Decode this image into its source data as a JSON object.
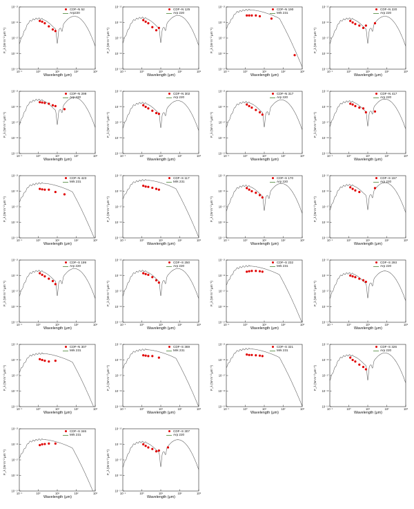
{
  "figure": {
    "xlabel": "Wavelength (μm)",
    "ylabel": "F_λ (W m⁻² μm⁻¹)",
    "x_ticks": [
      "10⁻¹",
      "10⁰",
      "10¹",
      "10²",
      "10³"
    ],
    "colors": {
      "obs": "#e00000",
      "template": "#555555",
      "legend_line": "#6a9a5a"
    }
  },
  "chart_data": [
    {
      "type": "scatter",
      "object": "CDF–N 52",
      "template": "Arp220",
      "xlim": [
        0.1,
        1000
      ],
      "ylim_exp": [
        -19,
        -15
      ],
      "points": [
        [
          1.2,
          -15.9
        ],
        [
          1.6,
          -15.95
        ],
        [
          2.2,
          -16.05
        ],
        [
          3.6,
          -16.25
        ],
        [
          5.8,
          -16.45
        ],
        [
          8,
          -16.55
        ]
      ]
    },
    {
      "type": "scatter",
      "object": "CDF–N 125",
      "template": "Arp 220",
      "xlim": [
        0.1,
        1000
      ],
      "ylim_exp": [
        -19,
        -15
      ],
      "points": [
        [
          1.2,
          -15.85
        ],
        [
          1.6,
          -15.95
        ],
        [
          2.2,
          -16.05
        ],
        [
          3.6,
          -16.3
        ],
        [
          5.8,
          -16.5
        ],
        [
          8,
          -16.35
        ]
      ]
    },
    {
      "type": "scatter",
      "object": "CDF–N 190",
      "template": "Mrk 231",
      "xlim": [
        0.1,
        1000
      ],
      "ylim_exp": [
        -19,
        -15
      ],
      "points": [
        [
          1.2,
          -15.55
        ],
        [
          1.6,
          -15.55
        ],
        [
          2.2,
          -15.55
        ],
        [
          3.6,
          -15.55
        ],
        [
          5.8,
          -15.6
        ],
        [
          24,
          -15.75
        ],
        [
          400,
          -18.1
        ]
      ]
    },
    {
      "type": "scatter",
      "object": "CDF–N 220",
      "template": "Arp 220",
      "xlim": [
        0.1,
        1000
      ],
      "ylim_exp": [
        -19,
        -15
      ],
      "points": [
        [
          1.2,
          -15.9
        ],
        [
          1.6,
          -16.0
        ],
        [
          2.2,
          -16.1
        ],
        [
          3.6,
          -16.2
        ],
        [
          5.8,
          -16.35
        ],
        [
          8,
          -16.2
        ],
        [
          24,
          -16.05
        ]
      ]
    },
    {
      "type": "scatter",
      "object": "CDF–N 299",
      "template": "Arp 220",
      "xlim": [
        0.1,
        1000
      ],
      "ylim_exp": [
        -19,
        -15
      ],
      "points": [
        [
          1.2,
          -15.7
        ],
        [
          1.6,
          -15.72
        ],
        [
          2.2,
          -15.75
        ],
        [
          3.6,
          -15.8
        ],
        [
          5.8,
          -15.9
        ],
        [
          8,
          -15.95
        ],
        [
          24,
          -16.15
        ]
      ]
    },
    {
      "type": "scatter",
      "object": "CDF–N 302",
      "template": "Arp 220",
      "xlim": [
        0.1,
        1000
      ],
      "ylim_exp": [
        -19,
        -15
      ],
      "points": [
        [
          1.2,
          -15.9
        ],
        [
          1.6,
          -16.0
        ],
        [
          2.2,
          -16.1
        ],
        [
          3.6,
          -16.25
        ],
        [
          5.8,
          -16.4
        ],
        [
          8,
          -16.45
        ]
      ]
    },
    {
      "type": "scatter",
      "object": "CDF–N 317",
      "template": "Arp 220",
      "xlim": [
        0.1,
        1000
      ],
      "ylim_exp": [
        -19,
        -15
      ],
      "points": [
        [
          1.2,
          -15.85
        ],
        [
          1.6,
          -15.95
        ],
        [
          2.2,
          -16.05
        ],
        [
          3.6,
          -16.2
        ],
        [
          5.8,
          -16.35
        ],
        [
          8,
          -16.5
        ]
      ]
    },
    {
      "type": "scatter",
      "object": "CDF–N 417",
      "template": "Arp 220",
      "xlim": [
        0.1,
        1000
      ],
      "ylim_exp": [
        -19,
        -15
      ],
      "points": [
        [
          1.2,
          -15.8
        ],
        [
          1.6,
          -15.85
        ],
        [
          2.2,
          -15.95
        ],
        [
          3.6,
          -16.05
        ],
        [
          5.8,
          -16.1
        ],
        [
          8,
          -16.35
        ],
        [
          24,
          -16.3
        ]
      ]
    },
    {
      "type": "scatter",
      "object": "CDF–N 423",
      "template": "Mrk 231",
      "xlim": [
        0.1,
        1000
      ],
      "ylim_exp": [
        -19,
        -15
      ],
      "points": [
        [
          1.2,
          -15.85
        ],
        [
          1.6,
          -15.88
        ],
        [
          2.2,
          -15.9
        ],
        [
          3.6,
          -15.9
        ],
        [
          8,
          -16.05
        ],
        [
          24,
          -16.2
        ]
      ]
    },
    {
      "type": "scatter",
      "object": "CDF–S 117",
      "template": "Mrk 231",
      "xlim": [
        0.1,
        1000
      ],
      "ylim_exp": [
        -19,
        -15
      ],
      "points": [
        [
          1.2,
          -15.65
        ],
        [
          1.6,
          -15.7
        ],
        [
          2.2,
          -15.72
        ],
        [
          3.6,
          -15.78
        ],
        [
          5.8,
          -15.85
        ],
        [
          8,
          -15.9
        ]
      ]
    },
    {
      "type": "scatter",
      "object": "CDF–S 170",
      "template": "Arp 220",
      "xlim": [
        0.1,
        1000
      ],
      "ylim_exp": [
        -19,
        -15
      ],
      "points": [
        [
          1.2,
          -15.8
        ],
        [
          1.6,
          -15.9
        ],
        [
          2.2,
          -16.0
        ],
        [
          3.6,
          -16.1
        ],
        [
          5.8,
          -16.25
        ],
        [
          8,
          -16.4
        ]
      ]
    },
    {
      "type": "scatter",
      "object": "CDF–S 157",
      "template": "Arp 220",
      "xlim": [
        0.1,
        1000
      ],
      "ylim_exp": [
        -19,
        -15
      ],
      "points": [
        [
          1.2,
          -15.75
        ],
        [
          1.6,
          -15.85
        ],
        [
          2.2,
          -15.95
        ],
        [
          3.6,
          -16.05
        ],
        [
          24,
          -15.8
        ]
      ]
    },
    {
      "type": "scatter",
      "object": "CDF–S 199",
      "template": "Arp 220",
      "xlim": [
        0.1,
        1000
      ],
      "ylim_exp": [
        -19,
        -15
      ],
      "points": [
        [
          1.2,
          -15.85
        ],
        [
          1.6,
          -15.95
        ],
        [
          2.2,
          -16.05
        ],
        [
          3.6,
          -16.2
        ],
        [
          5.8,
          -16.35
        ],
        [
          8,
          -16.55
        ]
      ]
    },
    {
      "type": "scatter",
      "object": "CDF–S 250",
      "template": "Arp 220",
      "xlim": [
        0.1,
        1000
      ],
      "ylim_exp": [
        -19,
        -15
      ],
      "points": [
        [
          1.2,
          -15.85
        ],
        [
          1.6,
          -15.9
        ],
        [
          2.2,
          -15.95
        ],
        [
          3.6,
          -16.1
        ],
        [
          5.8,
          -16.3
        ],
        [
          8,
          -16.45
        ]
      ]
    },
    {
      "type": "scatter",
      "object": "CDF–S 232",
      "template": "Mrk 231",
      "xlim": [
        0.1,
        1000
      ],
      "ylim_exp": [
        -19,
        -15
      ],
      "points": [
        [
          1.2,
          -15.75
        ],
        [
          1.6,
          -15.72
        ],
        [
          2.2,
          -15.7
        ],
        [
          3.6,
          -15.7
        ],
        [
          5.8,
          -15.72
        ],
        [
          8,
          -15.75
        ]
      ]
    },
    {
      "type": "scatter",
      "object": "CDF–S 293",
      "template": "Arp 220",
      "xlim": [
        0.1,
        1000
      ],
      "ylim_exp": [
        -19,
        -15
      ],
      "points": [
        [
          1.2,
          -16.0
        ],
        [
          1.6,
          -16.05
        ],
        [
          2.2,
          -16.1
        ],
        [
          3.6,
          -16.2
        ],
        [
          5.8,
          -16.3
        ],
        [
          8,
          -16.4
        ]
      ]
    },
    {
      "type": "scatter",
      "object": "CDF–N 307",
      "template": "Mrk 231",
      "xlim": [
        0.1,
        1000
      ],
      "ylim_exp": [
        -19,
        -15
      ],
      "points": [
        [
          1.2,
          -15.95
        ],
        [
          1.6,
          -16.0
        ],
        [
          2.2,
          -16.05
        ],
        [
          3.6,
          -16.1
        ],
        [
          8,
          -16.05
        ]
      ]
    },
    {
      "type": "scatter",
      "object": "CDF–S 369",
      "template": "Mrk 231",
      "xlim": [
        0.1,
        1000
      ],
      "ylim_exp": [
        -19,
        -15
      ],
      "points": [
        [
          1.2,
          -15.7
        ],
        [
          1.6,
          -15.72
        ],
        [
          2.2,
          -15.75
        ],
        [
          3.6,
          -15.75
        ],
        [
          8,
          -15.85
        ]
      ]
    },
    {
      "type": "scatter",
      "object": "CDF–S 321",
      "template": "Mrk 231",
      "xlim": [
        0.1,
        1000
      ],
      "ylim_exp": [
        -19,
        -15
      ],
      "points": [
        [
          1.2,
          -15.65
        ],
        [
          1.6,
          -15.68
        ],
        [
          2.2,
          -15.68
        ],
        [
          3.6,
          -15.7
        ],
        [
          5.8,
          -15.72
        ],
        [
          8,
          -15.75
        ]
      ]
    },
    {
      "type": "scatter",
      "object": "CDF–S 326",
      "template": "Arp 220",
      "xlim": [
        0.1,
        1000
      ],
      "ylim_exp": [
        -19,
        -15
      ],
      "points": [
        [
          1.2,
          -15.85
        ],
        [
          1.6,
          -16.0
        ],
        [
          2.2,
          -16.1
        ],
        [
          3.6,
          -16.3
        ],
        [
          5.8,
          -16.45
        ],
        [
          8,
          -16.6
        ]
      ]
    },
    {
      "type": "scatter",
      "object": "CDF–S 346",
      "template": "Mrk 231",
      "xlim": [
        0.1,
        1000
      ],
      "ylim_exp": [
        -19,
        -15
      ],
      "points": [
        [
          1.2,
          -16.05
        ],
        [
          1.6,
          -16.0
        ],
        [
          2.2,
          -15.98
        ],
        [
          3.6,
          -15.95
        ],
        [
          8,
          -15.95
        ]
      ]
    },
    {
      "type": "scatter",
      "object": "CDF–S 307",
      "template": "Arp 220",
      "xlim": [
        0.1,
        1000
      ],
      "ylim_exp": [
        -19,
        -15
      ],
      "points": [
        [
          1.2,
          -16.0
        ],
        [
          1.6,
          -16.1
        ],
        [
          2.2,
          -16.2
        ],
        [
          3.6,
          -16.3
        ],
        [
          5.8,
          -16.45
        ],
        [
          8,
          -16.4
        ],
        [
          24,
          -16.2
        ]
      ]
    }
  ]
}
